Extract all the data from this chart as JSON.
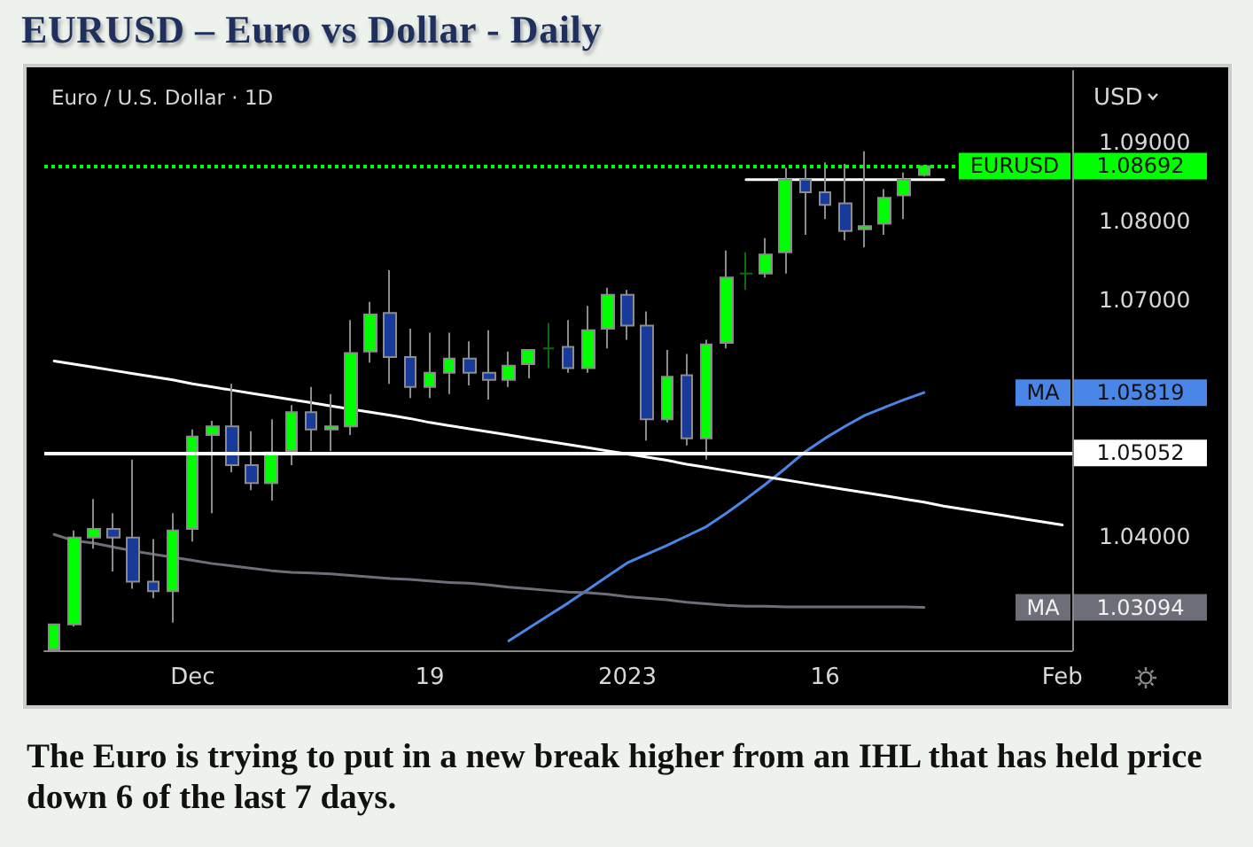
{
  "chart_data": {
    "type": "candlestick",
    "title": "EURUSD – Euro vs Dollar - Daily",
    "subtitle": "Euro / U.S. Dollar · 1D",
    "ylabel": "USD",
    "annotations": [
      "The Euro is trying to put in a new break higher from an IHL that has held price down 6 of the last 7 days.",
      "1.05819",
      "1.03094"
    ],
    "categories": [
      null,
      null,
      null,
      null,
      null,
      null,
      null,
      "Dec",
      null,
      null,
      null,
      null,
      null,
      null,
      null,
      null,
      null,
      null,
      null,
      "19",
      null,
      null,
      null,
      null,
      null,
      null,
      null,
      null,
      null,
      "2023",
      null,
      null,
      null,
      null,
      null,
      null,
      null,
      null,
      null,
      "16",
      null,
      null,
      null,
      null,
      null,
      null,
      null,
      null,
      null,
      null,
      null,
      "Feb"
    ],
    "series": [
      {
        "type": "candlestick",
        "name": "EURUSD",
        "ohlc": [
          [
            1.0256,
            1.0288,
            1.0256,
            1.0288
          ],
          [
            1.0288,
            1.0407,
            1.0285,
            1.0398
          ],
          [
            1.0398,
            1.0447,
            1.0384,
            1.0409
          ],
          [
            1.0409,
            1.0429,
            1.0355,
            1.0398
          ],
          [
            1.0398,
            1.0497,
            1.0333,
            1.0342
          ],
          [
            1.0342,
            1.0396,
            1.0321,
            1.033
          ],
          [
            1.033,
            1.0429,
            1.029,
            1.0407
          ],
          [
            1.0409,
            1.0535,
            1.0393,
            1.0526
          ],
          [
            1.0528,
            1.0546,
            1.0429,
            1.0539
          ],
          [
            1.0539,
            1.0593,
            1.0481,
            1.049
          ],
          [
            1.049,
            1.0533,
            1.0458,
            1.0467
          ],
          [
            1.0467,
            1.0548,
            1.0445,
            1.0506
          ],
          [
            1.0508,
            1.0566,
            1.049,
            1.0557
          ],
          [
            1.0557,
            1.0589,
            1.0508,
            1.0535
          ],
          [
            1.0535,
            1.058,
            1.0508,
            1.0539
          ],
          [
            1.0539,
            1.0674,
            1.0528,
            1.0632
          ],
          [
            1.0634,
            1.0697,
            1.062,
            1.0681
          ],
          [
            1.0683,
            1.0737,
            1.0593,
            1.0627
          ],
          [
            1.0627,
            1.0663,
            1.0575,
            1.0589
          ],
          [
            1.0589,
            1.0658,
            1.0575,
            1.0607
          ],
          [
            1.0607,
            1.0658,
            1.058,
            1.0625
          ],
          [
            1.0625,
            1.0647,
            1.0591,
            1.0607
          ],
          [
            1.0607,
            1.0661,
            1.0573,
            1.0598
          ],
          [
            1.0598,
            1.0634,
            1.0589,
            1.0616
          ],
          [
            1.0618,
            1.0636,
            1.06,
            1.0636
          ],
          [
            1.0638,
            1.067,
            1.0613,
            1.0638
          ],
          [
            1.064,
            1.0674,
            1.0607,
            1.0613
          ],
          [
            1.0613,
            1.0692,
            1.0607,
            1.0661
          ],
          [
            1.0663,
            1.0715,
            1.0638,
            1.0706
          ],
          [
            1.0706,
            1.0712,
            1.0649,
            1.0667
          ],
          [
            1.0667,
            1.0685,
            1.0521,
            1.0548
          ],
          [
            1.0548,
            1.0636,
            1.0544,
            1.0602
          ],
          [
            1.0604,
            1.0631,
            1.0515,
            1.0524
          ],
          [
            1.0524,
            1.0649,
            1.0497,
            1.0643
          ],
          [
            1.0645,
            1.0762,
            1.0638,
            1.0728
          ],
          [
            1.0733,
            1.076,
            1.0712,
            1.0733
          ],
          [
            1.0733,
            1.0778,
            1.0728,
            1.0757
          ],
          [
            1.076,
            1.0867,
            1.0733,
            1.0852
          ],
          [
            1.0852,
            1.0867,
            1.0782,
            1.0836
          ],
          [
            1.0836,
            1.0874,
            1.0802,
            1.082
          ],
          [
            1.0822,
            1.0872,
            1.0775,
            1.0787
          ],
          [
            1.0789,
            1.0888,
            1.0766,
            1.0793
          ],
          [
            1.0796,
            1.084,
            1.0782,
            1.0829
          ],
          [
            1.0832,
            1.0861,
            1.0802,
            1.0852
          ],
          [
            1.0858,
            1.087,
            1.0856,
            1.08692
          ],
          null,
          null,
          null,
          null,
          null,
          null,
          null
        ],
        "colors": [
          "#00ff00",
          "#00ff00",
          "#00ff00",
          "#173a9b",
          "#173a9b",
          "#173a9b",
          "#00ff00",
          "#00ff00",
          "#00ff00",
          "#173a9b",
          "#173a9b",
          "#00ff00",
          "#00ff00",
          "#173a9b",
          "#00ff00",
          "#00ff00",
          "#00ff00",
          "#173a9b",
          "#173a9b",
          "#00ff00",
          "#00ff00",
          "#173a9b",
          "#173a9b",
          "#00ff00",
          "#00ff00",
          "#0d6b0d",
          "#173a9b",
          "#00ff00",
          "#00ff00",
          "#173a9b",
          "#173a9b",
          "#00ff00",
          "#173a9b",
          "#00ff00",
          "#00ff00",
          "#0d6b0d",
          "#00ff00",
          "#00ff00",
          "#173a9b",
          "#173a9b",
          "#173a9b",
          "#00ff00",
          "#00ff00",
          "#00ff00",
          "#00ff00",
          null,
          null,
          null,
          null,
          null,
          null,
          null
        ],
        "value_labels": [
          null,
          null,
          null,
          null,
          null,
          null,
          null,
          null,
          null,
          null,
          null,
          null,
          null,
          null,
          null,
          null,
          null,
          null,
          null,
          null,
          null,
          null,
          null,
          null,
          null,
          null,
          null,
          null,
          null,
          null,
          null,
          null,
          null,
          null,
          null,
          null,
          null,
          null,
          null,
          null,
          null,
          null,
          null,
          null,
          "1.08692",
          null,
          null,
          null,
          null,
          null,
          null,
          null
        ]
      },
      {
        "type": "line",
        "name": "MA",
        "color": "#4a86e8",
        "values": [
          null,
          null,
          null,
          null,
          null,
          null,
          null,
          null,
          null,
          null,
          null,
          null,
          null,
          null,
          null,
          null,
          null,
          null,
          null,
          null,
          null,
          null,
          null,
          1.0267,
          1.0283,
          1.0299,
          1.0315,
          1.0332,
          1.0349,
          1.0366,
          1.0377,
          1.0388,
          1.04,
          1.0412,
          1.0429,
          1.0447,
          1.0466,
          1.0486,
          1.0507,
          1.0524,
          1.0539,
          1.0553,
          1.0563,
          1.0573,
          1.05819,
          null,
          null,
          null,
          null,
          null,
          null,
          null
        ]
      },
      {
        "type": "line",
        "name": "MA",
        "color": "#6e6e78",
        "values": [
          1.0402,
          1.0394,
          1.0391,
          1.0386,
          1.0381,
          1.0377,
          1.0373,
          1.0369,
          1.0365,
          1.0362,
          1.0359,
          1.0356,
          1.0354,
          1.0353,
          1.0352,
          1.035,
          1.0348,
          1.0346,
          1.0345,
          1.0343,
          1.0341,
          1.034,
          1.0338,
          1.0335,
          1.0333,
          1.0331,
          1.0329,
          1.0328,
          1.0326,
          1.0323,
          1.0321,
          1.0319,
          1.0316,
          1.0314,
          1.0312,
          1.0311,
          1.0311,
          1.031,
          1.031,
          1.031,
          1.031,
          1.031,
          1.031,
          1.031,
          1.03094,
          null,
          null,
          null,
          null,
          null,
          null,
          null
        ]
      },
      {
        "type": "line",
        "color": "#ffffff",
        "values": [
          1.0622,
          1.0618,
          1.0614,
          1.061,
          1.0606,
          1.0602,
          1.0598,
          1.0593,
          1.0589,
          1.0585,
          1.0581,
          1.0577,
          1.0573,
          1.0569,
          1.0565,
          1.0561,
          1.0557,
          1.0553,
          1.0549,
          1.0544,
          1.054,
          1.0536,
          1.0532,
          1.0528,
          1.0524,
          1.052,
          1.0516,
          1.0512,
          1.0508,
          1.0504,
          1.05,
          1.0496,
          1.0491,
          1.0487,
          1.0483,
          1.0479,
          1.0475,
          1.0471,
          1.0467,
          1.0463,
          1.0459,
          1.0455,
          1.0451,
          1.0447,
          1.0443,
          1.0438,
          1.0434,
          1.043,
          1.0426,
          1.0422,
          1.0418,
          1.0414
        ]
      },
      {
        "type": "line",
        "color": "#ffffff",
        "values": [
          null,
          null,
          null,
          null,
          null,
          null,
          null,
          null,
          null,
          null,
          null,
          null,
          null,
          null,
          null,
          null,
          null,
          null,
          null,
          null,
          null,
          null,
          null,
          null,
          null,
          null,
          null,
          null,
          null,
          null,
          null,
          null,
          null,
          null,
          null,
          1.0852,
          1.0852,
          1.0852,
          1.0852,
          1.0852,
          1.0852,
          1.0852,
          1.0852,
          1.0852,
          1.0852,
          1.0852,
          null,
          null,
          null,
          null,
          null,
          null
        ]
      }
    ],
    "ref_lines": [
      {
        "axis": "y",
        "value": 1.08692,
        "color": "#00ff00",
        "line_style": "dotted"
      },
      {
        "axis": "y",
        "value": 1.05052,
        "label": "1.05052",
        "color": "#ffffff"
      }
    ],
    "ylim": [
      1.0255,
      1.099
    ],
    "yticks": [
      {
        "value": 1.04,
        "label": "1.04000"
      },
      {
        "value": 1.07,
        "label": "1.07000"
      },
      {
        "value": 1.08,
        "label": "1.08000"
      },
      {
        "value": 1.09,
        "label": "1.09000"
      }
    ]
  }
}
